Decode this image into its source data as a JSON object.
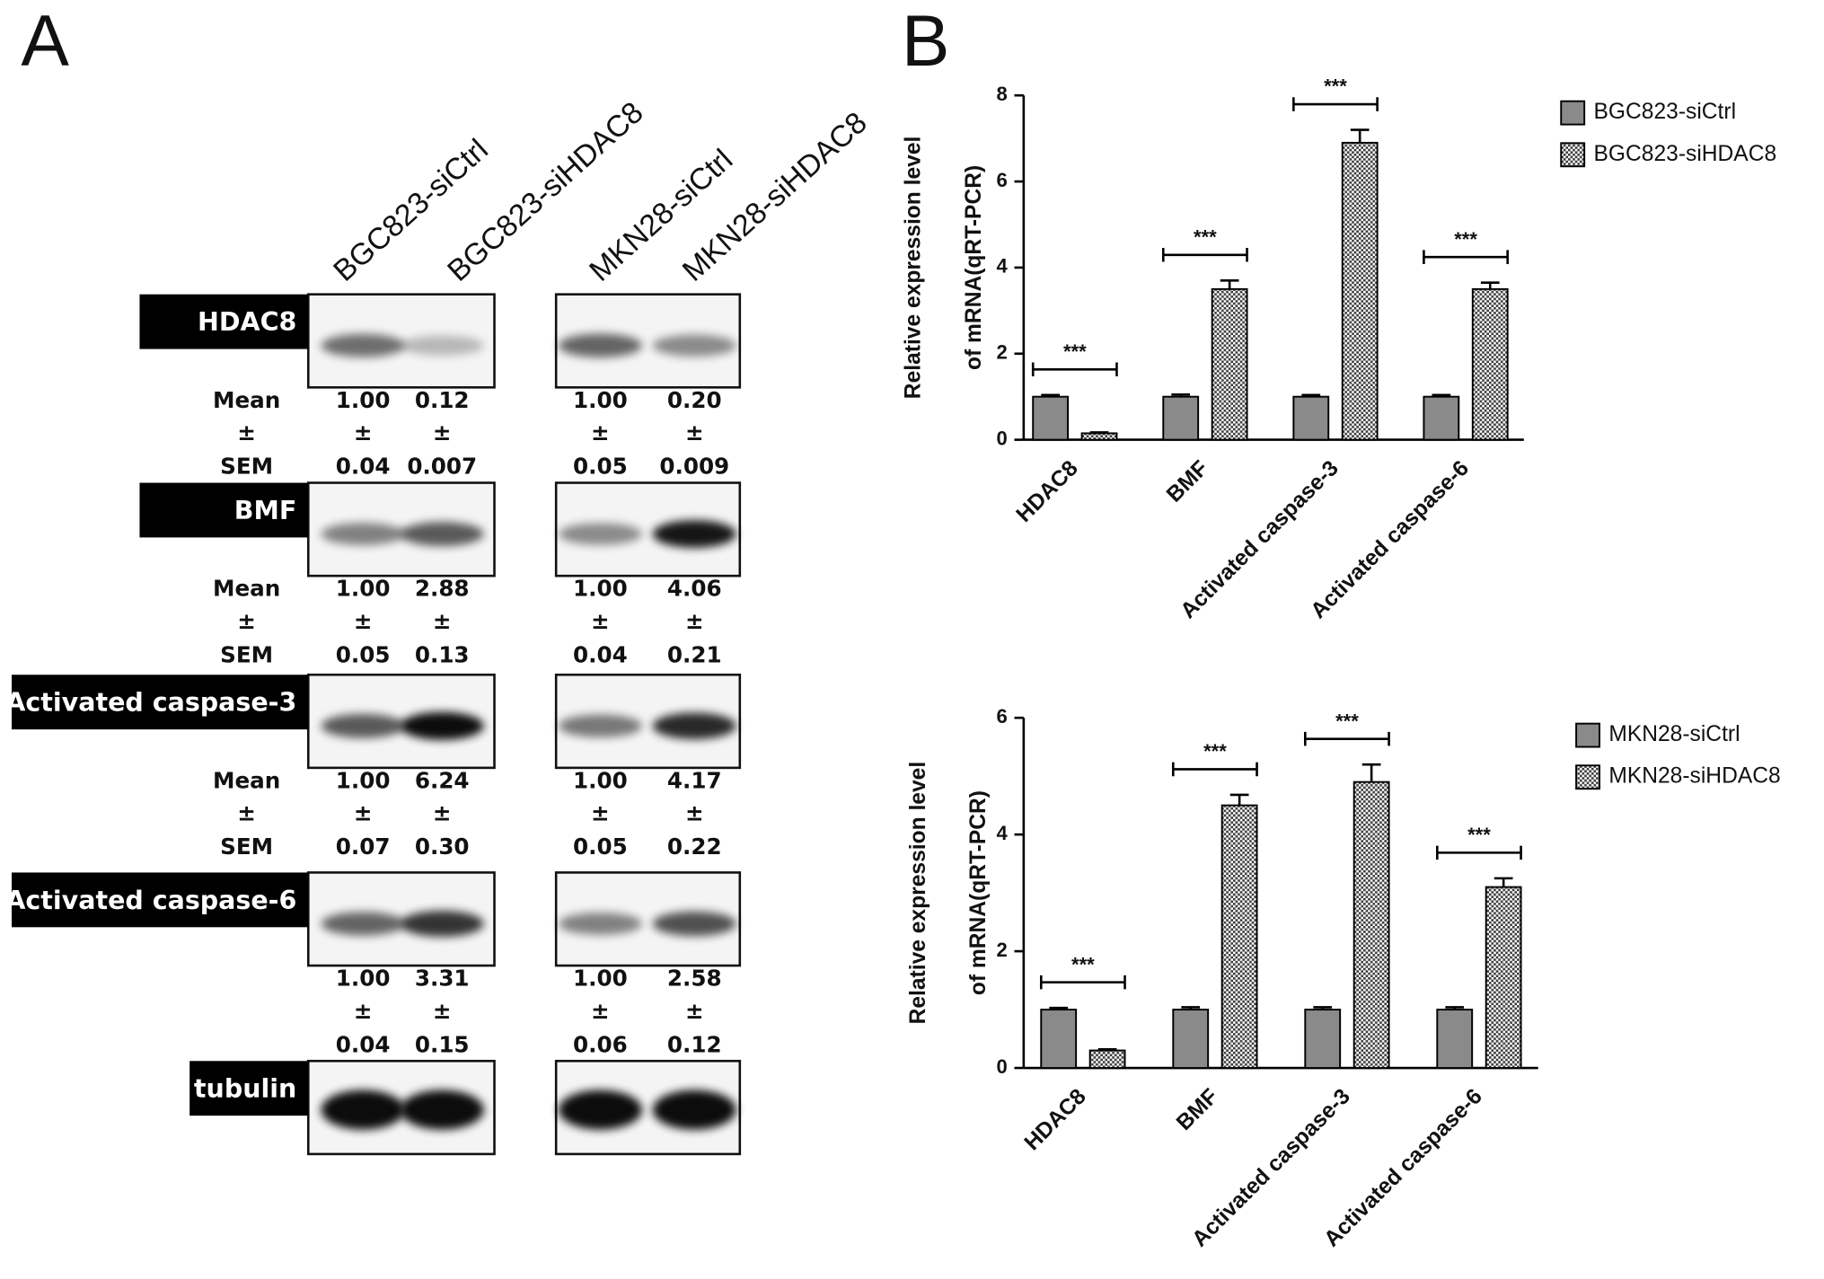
{
  "panel_labels": [
    "A",
    "B"
  ],
  "blot_panel": {
    "column_headers": [
      "BGC823-siCtrl",
      "BGC823-siHDAC8",
      "MKN28-siCtrl",
      "MKN28-siHDAC8"
    ],
    "rows": [
      {
        "protein": "HDAC8",
        "stat_labels": [
          "Mean",
          "±",
          "SEM"
        ],
        "lanes": [
          {
            "mean": "1.00",
            "pm": "±",
            "sem": "0.04"
          },
          {
            "mean": "0.12",
            "pm": "±",
            "sem": "0.007"
          },
          {
            "mean": "1.00",
            "pm": "±",
            "sem": "0.05"
          },
          {
            "mean": "0.20",
            "pm": "±",
            "sem": "0.009"
          }
        ]
      },
      {
        "protein": "BMF",
        "stat_labels": [
          "Mean",
          "±",
          "SEM"
        ],
        "lanes": [
          {
            "mean": "1.00",
            "pm": "±",
            "sem": "0.05"
          },
          {
            "mean": "2.88",
            "pm": "±",
            "sem": "0.13"
          },
          {
            "mean": "1.00",
            "pm": "±",
            "sem": "0.04"
          },
          {
            "mean": "4.06",
            "pm": "±",
            "sem": "0.21"
          }
        ]
      },
      {
        "protein": "Activated caspase-3",
        "stat_labels": [
          "Mean",
          "±",
          "SEM"
        ],
        "lanes": [
          {
            "mean": "1.00",
            "pm": "±",
            "sem": "0.07"
          },
          {
            "mean": "6.24",
            "pm": "±",
            "sem": "0.30"
          },
          {
            "mean": "1.00",
            "pm": "±",
            "sem": "0.05"
          },
          {
            "mean": "4.17",
            "pm": "±",
            "sem": "0.22"
          }
        ]
      },
      {
        "protein": "Activated caspase-6",
        "lanes": [
          {
            "mean": "1.00",
            "pm": "±",
            "sem": "0.04"
          },
          {
            "mean": "3.31",
            "pm": "±",
            "sem": "0.15"
          },
          {
            "mean": "1.00",
            "pm": "±",
            "sem": "0.06"
          },
          {
            "mean": "2.58",
            "pm": "±",
            "sem": "0.12"
          }
        ]
      },
      {
        "protein": "tubulin"
      }
    ]
  },
  "chart_data": [
    {
      "type": "bar",
      "ylabel": [
        "Relative expression level",
        "of mRNA(qRT-PCR)"
      ],
      "categories": [
        "HDAC8",
        "BMF",
        "Activated caspase-3",
        "Activated caspase-6"
      ],
      "series": [
        {
          "name": "BGC823-siCtrl",
          "color": "#8a8a8a",
          "values": [
            1,
            1,
            1,
            1
          ],
          "errors": [
            0.04,
            0.05,
            0.04,
            0.04
          ]
        },
        {
          "name": "BGC823-siHDAC8",
          "color": "#3a3a3a",
          "pattern": "checker",
          "values": [
            0.15,
            3.5,
            6.9,
            3.5
          ],
          "errors": [
            0.02,
            0.2,
            0.3,
            0.15
          ]
        }
      ],
      "significance": [
        "***",
        "***",
        "***",
        "***"
      ],
      "ylim": [
        0,
        8
      ],
      "yticks": [
        0,
        2,
        4,
        6,
        8
      ]
    },
    {
      "type": "bar",
      "ylabel": [
        "Relative expression level",
        "of mRNA(qRT-PCR)"
      ],
      "categories": [
        "HDAC8",
        "BMF",
        "Activated caspase-3",
        "Activated caspase-6"
      ],
      "series": [
        {
          "name": "MKN28-siCtrl",
          "color": "#8a8a8a",
          "values": [
            1,
            1,
            1,
            1
          ],
          "errors": [
            0.03,
            0.04,
            0.04,
            0.04
          ]
        },
        {
          "name": "MKN28-siHDAC8",
          "color": "#3a3a3a",
          "pattern": "checker",
          "values": [
            0.3,
            4.5,
            4.9,
            3.1
          ],
          "errors": [
            0.02,
            0.18,
            0.3,
            0.15
          ]
        }
      ],
      "significance": [
        "***",
        "***",
        "***",
        "***"
      ],
      "ylim": [
        0,
        6
      ],
      "yticks": [
        0,
        2,
        4,
        6
      ]
    }
  ]
}
